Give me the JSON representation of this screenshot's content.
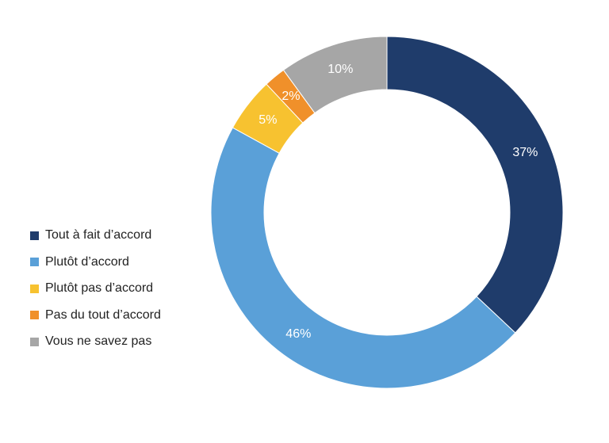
{
  "chart_data": {
    "type": "pie",
    "donut": true,
    "title": "",
    "legend_position": "left",
    "slices": [
      {
        "label": "Tout à fait d’accord",
        "value": 37,
        "display": "37%",
        "color": "#1f3c6b",
        "label_color": "#ffffff"
      },
      {
        "label": "Plutôt d’accord",
        "value": 46,
        "display": "46%",
        "color": "#5aa0d8",
        "label_color": "#ffffff"
      },
      {
        "label": "Plutôt pas d’accord",
        "value": 5,
        "display": "5%",
        "color": "#f7c230",
        "label_color": "#ffffff"
      },
      {
        "label": "Pas du tout d’accord",
        "value": 2,
        "display": "2%",
        "color": "#f0902a",
        "label_color": "#ffffff"
      },
      {
        "label": "Vous ne savez pas",
        "value": 10,
        "display": "10%",
        "color": "#a6a6a6",
        "label_color": "#ffffff"
      }
    ]
  }
}
